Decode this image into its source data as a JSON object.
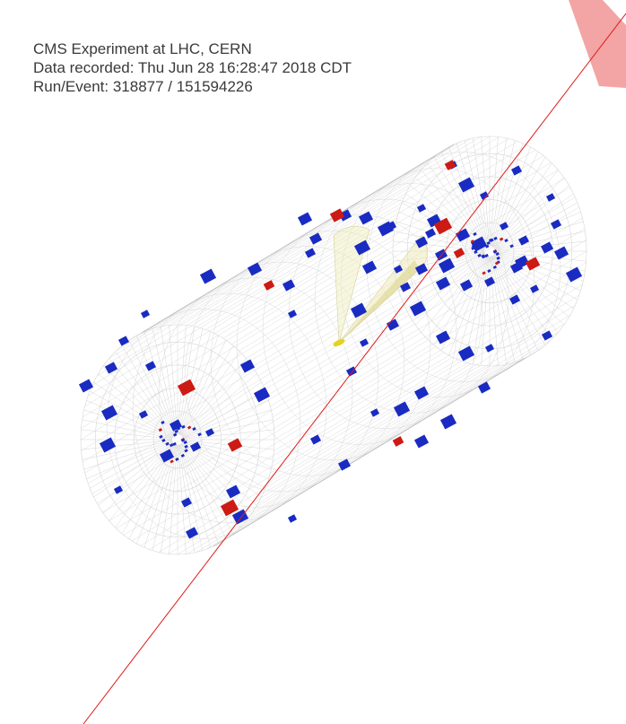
{
  "info": {
    "experiment": "CMS Experiment at LHC, CERN",
    "recorded": "Data recorded: Thu Jun 28 16:28:47 2018 CDT",
    "run_event": "Run/Event: 318877 / 151594226"
  },
  "colors": {
    "background": "#ffffff",
    "mesh": "#d6d6d6",
    "hadronic_deposit": "#1a2bc2",
    "electromagnetic_deposit": "#cc1a14",
    "muon_track": "#e01a1a",
    "muon_chamber": "#f29a9a",
    "jet_cone": "#eeeab8",
    "vertex": "#e6d21c"
  },
  "icons": [
    "detector-barrel-icon",
    "muon-track-icon",
    "jet-cone-icon"
  ]
}
